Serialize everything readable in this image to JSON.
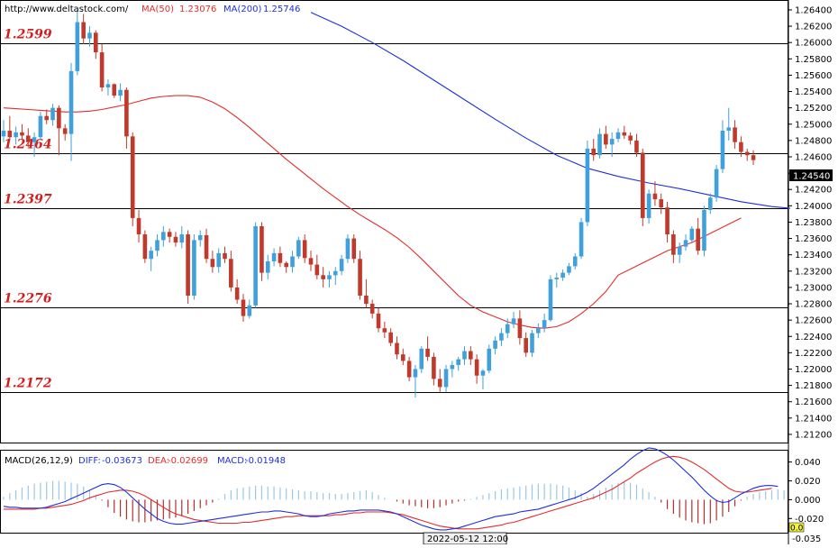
{
  "source_url": "http://www.deltastock.com/",
  "ma50": {
    "label": "MA(50)",
    "value": "1.23076",
    "color": "#e52b2b"
  },
  "ma200": {
    "label": "MA(200)",
    "value": "1.25746",
    "color": "#1f2fdc"
  },
  "levels": [
    "1.2599",
    "1.2464",
    "1.2397",
    "1.2276",
    "1.2172"
  ],
  "price_ticks": [
    "1.26400",
    "1.26200",
    "1.26000",
    "1.25800",
    "1.25600",
    "1.25400",
    "1.25200",
    "1.25000",
    "1.24800",
    "1.24600",
    "1.24400",
    "1.24200",
    "1.24000",
    "1.23800",
    "1.23600",
    "1.23400",
    "1.23200",
    "1.23000",
    "1.22800",
    "1.22600",
    "1.22400",
    "1.22200",
    "1.22000",
    "1.21800",
    "1.21600",
    "1.21400",
    "1.21200"
  ],
  "current_price": "1.24540",
  "macd": {
    "title": "MACD(26,12,9)",
    "diff_label": "DIFF:",
    "diff_value": "-0.03673",
    "dea_label": "DEA:",
    "dea_value": "-0.02699",
    "macd_label": "MACD:",
    "macd_value": "-0.01948",
    "ticks": [
      "0.040",
      "0.020",
      "0.000",
      "-0.020"
    ],
    "bottom_value": "-0.035",
    "marker_value": "0.0"
  },
  "time_label": "2022-05-12 12:00",
  "colors": {
    "up": "#3fa0dc",
    "down": "#c0392b",
    "levels": "#d21e1e",
    "diff": "#1f2fdc",
    "dea": "#e52b2b",
    "hist": "#9cc7e6",
    "hist_neg": "#b03030"
  },
  "chart_data": {
    "type": "candlestick",
    "ylim": [
      1.211,
      1.2651
    ],
    "ohlc": [
      [
        1.2485,
        1.2505,
        1.2478,
        1.2492
      ],
      [
        1.2492,
        1.251,
        1.248,
        1.2484
      ],
      [
        1.2484,
        1.2497,
        1.2475,
        1.249
      ],
      [
        1.249,
        1.25,
        1.2482,
        1.2486
      ],
      [
        1.2486,
        1.2495,
        1.2472,
        1.2478
      ],
      [
        1.2478,
        1.249,
        1.246,
        1.2484
      ],
      [
        1.2484,
        1.2515,
        1.248,
        1.251
      ],
      [
        1.251,
        1.2518,
        1.25,
        1.2505
      ],
      [
        1.2505,
        1.2525,
        1.2498,
        1.252
      ],
      [
        1.252,
        1.2523,
        1.2462,
        1.2495
      ],
      [
        1.2495,
        1.25,
        1.248,
        1.2488
      ],
      [
        1.2488,
        1.2575,
        1.2455,
        1.2565
      ],
      [
        1.2565,
        1.264,
        1.256,
        1.2625
      ],
      [
        1.2625,
        1.2635,
        1.2598,
        1.2605
      ],
      [
        1.2605,
        1.262,
        1.2595,
        1.2612
      ],
      [
        1.2612,
        1.2615,
        1.258,
        1.2588
      ],
      [
        1.2588,
        1.2598,
        1.254,
        1.2545
      ],
      [
        1.2545,
        1.2555,
        1.2535,
        1.2549
      ],
      [
        1.2549,
        1.255,
        1.2532,
        1.2535
      ],
      [
        1.2535,
        1.255,
        1.2528,
        1.2542
      ],
      [
        1.2542,
        1.2545,
        1.247,
        1.2485
      ],
      [
        1.2485,
        1.249,
        1.2375,
        1.2385
      ],
      [
        1.2385,
        1.2395,
        1.2355,
        1.2365
      ],
      [
        1.2365,
        1.237,
        1.233,
        1.2335
      ],
      [
        1.2335,
        1.235,
        1.232,
        1.2345
      ],
      [
        1.2345,
        1.2365,
        1.2338,
        1.2358
      ],
      [
        1.2358,
        1.2375,
        1.235,
        1.2368
      ],
      [
        1.2368,
        1.2372,
        1.2355,
        1.2362
      ],
      [
        1.2362,
        1.2368,
        1.235,
        1.2355
      ],
      [
        1.2355,
        1.2375,
        1.2348,
        1.2365
      ],
      [
        1.2365,
        1.237,
        1.228,
        1.229
      ],
      [
        1.229,
        1.2365,
        1.2285,
        1.2358
      ],
      [
        1.2358,
        1.237,
        1.235,
        1.2364
      ],
      [
        1.2364,
        1.2372,
        1.233,
        1.2335
      ],
      [
        1.2335,
        1.2345,
        1.2318,
        1.2325
      ],
      [
        1.2325,
        1.2348,
        1.2318,
        1.2342
      ],
      [
        1.2342,
        1.235,
        1.233,
        1.2335
      ],
      [
        1.2335,
        1.2345,
        1.2295,
        1.23
      ],
      [
        1.23,
        1.231,
        1.228,
        1.2285
      ],
      [
        1.2285,
        1.2292,
        1.2258,
        1.2265
      ],
      [
        1.2265,
        1.2285,
        1.2262,
        1.2278
      ],
      [
        1.2278,
        1.238,
        1.2275,
        1.2375
      ],
      [
        1.2375,
        1.238,
        1.2308,
        1.2318
      ],
      [
        1.2318,
        1.234,
        1.231,
        1.2332
      ],
      [
        1.2332,
        1.2348,
        1.2326,
        1.2342
      ],
      [
        1.2342,
        1.235,
        1.2325,
        1.233
      ],
      [
        1.233,
        1.2332,
        1.2318,
        1.2325
      ],
      [
        1.2325,
        1.2345,
        1.2318,
        1.2338
      ],
      [
        1.2338,
        1.2362,
        1.2335,
        1.2358
      ],
      [
        1.2358,
        1.2365,
        1.233,
        1.2336
      ],
      [
        1.2336,
        1.2345,
        1.232,
        1.2328
      ],
      [
        1.2328,
        1.234,
        1.231,
        1.2315
      ],
      [
        1.2315,
        1.2325,
        1.23,
        1.231
      ],
      [
        1.231,
        1.232,
        1.23,
        1.2315
      ],
      [
        1.2315,
        1.2325,
        1.2303,
        1.232
      ],
      [
        1.232,
        1.234,
        1.2315,
        1.2335
      ],
      [
        1.2335,
        1.2365,
        1.233,
        1.236
      ],
      [
        1.236,
        1.2365,
        1.233,
        1.2335
      ],
      [
        1.2335,
        1.2345,
        1.2285,
        1.229
      ],
      [
        1.229,
        1.231,
        1.2275,
        1.228
      ],
      [
        1.228,
        1.2285,
        1.2262,
        1.2268
      ],
      [
        1.2268,
        1.2275,
        1.2245,
        1.225
      ],
      [
        1.225,
        1.2258,
        1.2238,
        1.2245
      ],
      [
        1.2245,
        1.225,
        1.2228,
        1.2232
      ],
      [
        1.2232,
        1.224,
        1.2212,
        1.2218
      ],
      [
        1.2218,
        1.2225,
        1.2205,
        1.221
      ],
      [
        1.221,
        1.2215,
        1.2185,
        1.219
      ],
      [
        1.219,
        1.2205,
        1.2165,
        1.22
      ],
      [
        1.22,
        1.2228,
        1.2195,
        1.2225
      ],
      [
        1.2225,
        1.224,
        1.221,
        1.2215
      ],
      [
        1.2215,
        1.222,
        1.218,
        1.2188
      ],
      [
        1.2188,
        1.22,
        1.2172,
        1.2178
      ],
      [
        1.2178,
        1.2205,
        1.2172,
        1.22
      ],
      [
        1.22,
        1.221,
        1.219,
        1.2205
      ],
      [
        1.2205,
        1.2215,
        1.2198,
        1.2212
      ],
      [
        1.2212,
        1.2228,
        1.2205,
        1.2222
      ],
      [
        1.2222,
        1.2228,
        1.2205,
        1.2212
      ],
      [
        1.2212,
        1.2218,
        1.2182,
        1.2192
      ],
      [
        1.2192,
        1.22,
        1.2175,
        1.2198
      ],
      [
        1.2198,
        1.223,
        1.2195,
        1.2225
      ],
      [
        1.2225,
        1.224,
        1.2218,
        1.2235
      ],
      [
        1.2235,
        1.225,
        1.2228,
        1.2244
      ],
      [
        1.2244,
        1.2262,
        1.2238,
        1.2255
      ],
      [
        1.2255,
        1.227,
        1.225,
        1.2262
      ],
      [
        1.2262,
        1.2272,
        1.223,
        1.2238
      ],
      [
        1.2238,
        1.2245,
        1.2215,
        1.222
      ],
      [
        1.222,
        1.2248,
        1.2215,
        1.2244
      ],
      [
        1.2244,
        1.2256,
        1.2238,
        1.225
      ],
      [
        1.225,
        1.2268,
        1.2245,
        1.226
      ],
      [
        1.226,
        1.2315,
        1.2258,
        1.231
      ],
      [
        1.231,
        1.2318,
        1.23,
        1.2312
      ],
      [
        1.2312,
        1.2322,
        1.2308,
        1.2318
      ],
      [
        1.2318,
        1.233,
        1.2315,
        1.2326
      ],
      [
        1.2326,
        1.2342,
        1.2322,
        1.2338
      ],
      [
        1.2338,
        1.2385,
        1.2335,
        1.238
      ],
      [
        1.238,
        1.248,
        1.2375,
        1.247
      ],
      [
        1.247,
        1.2482,
        1.2455,
        1.2462
      ],
      [
        1.2462,
        1.2495,
        1.2458,
        1.2488
      ],
      [
        1.2488,
        1.2498,
        1.247,
        1.2475
      ],
      [
        1.2475,
        1.249,
        1.246,
        1.2482
      ],
      [
        1.2482,
        1.2495,
        1.2478,
        1.249
      ],
      [
        1.249,
        1.2498,
        1.2482,
        1.2486
      ],
      [
        1.2486,
        1.249,
        1.2475,
        1.248
      ],
      [
        1.248,
        1.2488,
        1.246,
        1.2465
      ],
      [
        1.2465,
        1.247,
        1.2375,
        1.2385
      ],
      [
        1.2385,
        1.242,
        1.2378,
        1.2415
      ],
      [
        1.2415,
        1.243,
        1.24,
        1.2408
      ],
      [
        1.2408,
        1.2415,
        1.239,
        1.2398
      ],
      [
        1.2398,
        1.2405,
        1.2355,
        1.2365
      ],
      [
        1.2365,
        1.237,
        1.233,
        1.234
      ],
      [
        1.234,
        1.2355,
        1.233,
        1.235
      ],
      [
        1.235,
        1.2365,
        1.2345,
        1.2358
      ],
      [
        1.2358,
        1.2375,
        1.2355,
        1.2372
      ],
      [
        1.2372,
        1.2385,
        1.234,
        1.2345
      ],
      [
        1.2345,
        1.24,
        1.2338,
        1.2395
      ],
      [
        1.2395,
        1.2415,
        1.239,
        1.241
      ],
      [
        1.241,
        1.245,
        1.2405,
        1.2445
      ],
      [
        1.2445,
        1.2505,
        1.244,
        1.2492
      ],
      [
        1.2492,
        1.252,
        1.248,
        1.2496
      ],
      [
        1.2496,
        1.2505,
        1.247,
        1.2478
      ],
      [
        1.2478,
        1.2485,
        1.246,
        1.2466
      ],
      [
        1.2466,
        1.247,
        1.2455,
        1.2462
      ],
      [
        1.2462,
        1.2468,
        1.245,
        1.2456
      ]
    ],
    "ma50": [
      1.252,
      1.2519,
      1.2518,
      1.2517,
      1.2516,
      1.2515,
      1.2515,
      1.2516,
      1.2518,
      1.2521,
      1.2524,
      1.2528,
      1.2532,
      1.2534,
      1.2535,
      1.2535,
      1.2533,
      1.2527,
      1.2519,
      1.2508,
      1.2496,
      1.2483,
      1.247,
      1.2457,
      1.2445,
      1.2433,
      1.2421,
      1.241,
      1.2399,
      1.2389,
      1.238,
      1.2371,
      1.2361,
      1.2349,
      1.2335,
      1.232,
      1.2305,
      1.229,
      1.2278,
      1.227,
      1.2264,
      1.2258,
      1.2254,
      1.2251,
      1.225,
      1.2252,
      1.2258,
      1.2268,
      1.228,
      1.2295,
      1.2315,
      1.233,
      1.2345,
      1.2355,
      1.237,
      1.2385
    ],
    "ma50_x": [
      0,
      2,
      4,
      6,
      8,
      10,
      12,
      14,
      16,
      18,
      20,
      22,
      24,
      26,
      28,
      30,
      32,
      34,
      36,
      38,
      40,
      42,
      44,
      46,
      48,
      50,
      52,
      54,
      56,
      58,
      60,
      62,
      64,
      66,
      68,
      70,
      72,
      74,
      76,
      78,
      80,
      82,
      84,
      86,
      88,
      90,
      92,
      94,
      96,
      98,
      100,
      104,
      108,
      112,
      116,
      120
    ],
    "ma200": [
      1.2637,
      1.262,
      1.26,
      1.2578,
      1.2554,
      1.253,
      1.2506,
      1.2483,
      1.2462,
      1.2446,
      1.2436,
      1.2428,
      1.2421,
      1.2413,
      1.2405,
      1.2399,
      1.2397
    ],
    "ma200_x": [
      50,
      55,
      60,
      65,
      70,
      75,
      80,
      85,
      90,
      95,
      100,
      105,
      110,
      115,
      120,
      125,
      128
    ],
    "macd": {
      "ylim": [
        -0.035,
        0.052
      ],
      "histogram": [
        0.003,
        0.007,
        0.01,
        0.013,
        0.015,
        0.017,
        0.018,
        0.019,
        0.02,
        0.02,
        0.019,
        0.018,
        0.017,
        0.014,
        0.01,
        0.005,
        -0.001,
        -0.008,
        -0.014,
        -0.018,
        -0.021,
        -0.023,
        -0.024,
        -0.024,
        -0.023,
        -0.022,
        -0.021,
        -0.02,
        -0.019,
        -0.017,
        -0.015,
        -0.012,
        -0.009,
        -0.006,
        -0.003,
        0.001,
        0.006,
        0.01,
        0.012,
        0.013,
        0.014,
        0.015,
        0.015,
        0.014,
        0.014,
        0.013,
        0.012,
        0.011,
        0.01,
        0.009,
        0.009,
        0.008,
        0.007,
        0.007,
        0.006,
        0.006,
        0.007,
        0.008,
        0.009,
        0.01,
        0.008,
        0.005,
        0.002,
        0.0,
        -0.002,
        -0.004,
        -0.006,
        -0.007,
        -0.008,
        -0.009,
        -0.009,
        -0.008,
        -0.006,
        -0.004,
        -0.002,
        -0.001,
        0.001,
        0.003,
        0.005,
        0.007,
        0.009,
        0.011,
        0.012,
        0.013,
        0.014,
        0.015,
        0.016,
        0.017,
        0.017,
        0.017,
        0.016,
        0.015,
        0.013,
        0.01,
        0.007,
        0.003,
        0.006,
        0.01,
        0.013,
        0.016,
        0.018,
        0.019,
        0.018,
        0.016,
        0.012,
        0.008,
        0.003,
        -0.003,
        -0.01,
        -0.015,
        -0.019,
        -0.022,
        -0.024,
        -0.025,
        -0.026,
        -0.025,
        -0.022,
        -0.018,
        -0.013,
        -0.007,
        -0.001,
        0.003,
        0.006,
        0.008,
        0.009,
        0.01,
        0.011,
        0.01
      ],
      "diff": [
        -0.007,
        -0.008,
        -0.008,
        -0.009,
        -0.009,
        -0.009,
        -0.009,
        -0.008,
        -0.006,
        -0.004,
        -0.002,
        0.001,
        0.004,
        0.007,
        0.01,
        0.013,
        0.016,
        0.017,
        0.016,
        0.013,
        0.008,
        0.002,
        -0.004,
        -0.01,
        -0.015,
        -0.02,
        -0.023,
        -0.025,
        -0.026,
        -0.026,
        -0.025,
        -0.024,
        -0.023,
        -0.022,
        -0.021,
        -0.02,
        -0.019,
        -0.018,
        -0.017,
        -0.016,
        -0.015,
        -0.014,
        -0.013,
        -0.013,
        -0.012,
        -0.012,
        -0.013,
        -0.014,
        -0.015,
        -0.017,
        -0.018,
        -0.018,
        -0.017,
        -0.015,
        -0.014,
        -0.013,
        -0.012,
        -0.012,
        -0.011,
        -0.011,
        -0.011,
        -0.011,
        -0.012,
        -0.013,
        -0.015,
        -0.018,
        -0.021,
        -0.024,
        -0.027,
        -0.029,
        -0.031,
        -0.032,
        -0.032,
        -0.031,
        -0.03,
        -0.028,
        -0.026,
        -0.024,
        -0.022,
        -0.02,
        -0.018,
        -0.017,
        -0.016,
        -0.015,
        -0.013,
        -0.012,
        -0.011,
        -0.01,
        -0.008,
        -0.006,
        -0.004,
        -0.002,
        0.0,
        0.002,
        0.005,
        0.008,
        0.012,
        0.017,
        0.022,
        0.027,
        0.032,
        0.037,
        0.043,
        0.048,
        0.052,
        0.055,
        0.054,
        0.051,
        0.047,
        0.042,
        0.036,
        0.03,
        0.024,
        0.017,
        0.01,
        0.004,
        -0.001,
        -0.003,
        -0.002,
        0.002,
        0.006,
        0.009,
        0.012,
        0.014,
        0.015,
        0.015,
        0.014
      ],
      "dea": [
        -0.01,
        -0.01,
        -0.01,
        -0.01,
        -0.01,
        -0.01,
        -0.009,
        -0.009,
        -0.008,
        -0.007,
        -0.006,
        -0.005,
        -0.003,
        -0.001,
        0.002,
        0.004,
        0.006,
        0.008,
        0.009,
        0.01,
        0.01,
        0.009,
        0.007,
        0.004,
        0.0,
        -0.004,
        -0.008,
        -0.012,
        -0.015,
        -0.017,
        -0.019,
        -0.021,
        -0.022,
        -0.023,
        -0.024,
        -0.025,
        -0.025,
        -0.025,
        -0.025,
        -0.024,
        -0.024,
        -0.023,
        -0.022,
        -0.021,
        -0.02,
        -0.019,
        -0.018,
        -0.018,
        -0.017,
        -0.017,
        -0.017,
        -0.017,
        -0.017,
        -0.017,
        -0.016,
        -0.016,
        -0.015,
        -0.014,
        -0.014,
        -0.013,
        -0.013,
        -0.013,
        -0.013,
        -0.014,
        -0.015,
        -0.016,
        -0.018,
        -0.02,
        -0.022,
        -0.024,
        -0.026,
        -0.028,
        -0.029,
        -0.03,
        -0.031,
        -0.031,
        -0.031,
        -0.031,
        -0.03,
        -0.029,
        -0.028,
        -0.027,
        -0.025,
        -0.024,
        -0.022,
        -0.02,
        -0.018,
        -0.016,
        -0.014,
        -0.012,
        -0.01,
        -0.008,
        -0.006,
        -0.004,
        -0.002,
        0.0,
        0.002,
        0.005,
        0.008,
        0.011,
        0.015,
        0.019,
        0.023,
        0.028,
        0.032,
        0.036,
        0.04,
        0.043,
        0.045,
        0.046,
        0.045,
        0.043,
        0.04,
        0.036,
        0.032,
        0.027,
        0.022,
        0.017,
        0.012,
        0.009,
        0.008,
        0.008,
        0.009,
        0.01,
        0.011,
        0.012
      ]
    }
  }
}
